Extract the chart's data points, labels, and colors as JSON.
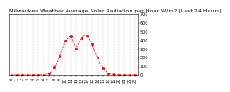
{
  "title": "Milwaukee Weather Average Solar Radiation per Hour W/m2 (Last 24 Hours)",
  "hours": [
    0,
    1,
    2,
    3,
    4,
    5,
    6,
    7,
    8,
    9,
    10,
    11,
    12,
    13,
    14,
    15,
    16,
    17,
    18,
    19,
    20,
    21,
    22,
    23
  ],
  "values": [
    0,
    0,
    0,
    0,
    0,
    0,
    2,
    20,
    90,
    220,
    390,
    450,
    300,
    430,
    460,
    350,
    200,
    80,
    20,
    5,
    0,
    0,
    0,
    0
  ],
  "line_color": "#ff0000",
  "bg_color": "#ffffff",
  "grid_color": "#aaaaaa",
  "ylim": [
    0,
    700
  ],
  "yticks": [
    0,
    100,
    200,
    300,
    400,
    500,
    600,
    700
  ],
  "title_fontsize": 4.5,
  "tick_fontsize": 3.5
}
